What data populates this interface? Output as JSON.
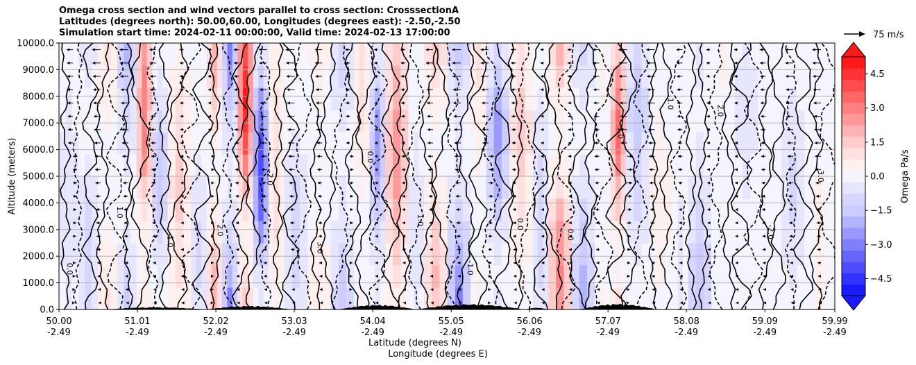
{
  "chart_data": {
    "type": "contour",
    "title_lines": [
      "Omega cross section and wind vectors parallel to cross section: CrosssectionA",
      "Latitudes (degrees north): 50.00,60.00, Longitudes (degrees east): -2.50,-2.50",
      "Simulation start time: 2024-02-11 00:00:00, Valid time: 2024-02-13 17:00:00"
    ],
    "ylabel": "Altitude (meters)",
    "xlabel_lat": "Latitude (degrees N)",
    "xlabel_lon": "Longitude (degrees E)",
    "ylim": [
      0,
      10000
    ],
    "yticks": [
      "0.0",
      "1000.0",
      "2000.0",
      "3000.0",
      "4000.0",
      "5000.0",
      "6000.0",
      "7000.0",
      "8000.0",
      "9000.0",
      "10000.0"
    ],
    "ytick_values": [
      0,
      1000,
      2000,
      3000,
      4000,
      5000,
      6000,
      7000,
      8000,
      9000,
      10000
    ],
    "xlim": [
      50.0,
      59.99
    ],
    "xticks_lat": [
      "50.00",
      "51.01",
      "52.02",
      "53.03",
      "54.04",
      "55.05",
      "56.06",
      "57.07",
      "58.08",
      "59.09",
      "59.99"
    ],
    "xticks_lon": [
      "-2.49",
      "-2.49",
      "-2.49",
      "-2.49",
      "-2.49",
      "-2.49",
      "-2.49",
      "-2.49",
      "-2.49",
      "-2.49",
      "-2.49"
    ],
    "xtick_values": [
      50.0,
      51.01,
      52.02,
      53.03,
      54.04,
      55.05,
      56.06,
      57.07,
      58.08,
      59.09,
      59.99
    ],
    "grid": true,
    "colorbar": {
      "label": "Omega Pa/s",
      "range": [
        -5.25,
        5.25
      ],
      "ticks": [
        "4.5",
        "3.0",
        "1.5",
        "0.0",
        "−1.5",
        "−3.0",
        "−4.5"
      ],
      "tick_values": [
        4.5,
        3.0,
        1.5,
        0.0,
        -1.5,
        -3.0,
        -4.5
      ],
      "levels": [
        -5.25,
        -4.75,
        -4.25,
        -3.75,
        -3.25,
        -2.75,
        -2.25,
        -1.75,
        -1.25,
        -0.75,
        -0.25,
        0.25,
        0.75,
        1.25,
        1.75,
        2.25,
        2.75,
        3.25,
        3.75,
        4.25,
        4.75,
        5.25
      ],
      "extend": "both",
      "colors": [
        "#1a1aff",
        "#3333ff",
        "#4d4dff",
        "#6666ff",
        "#8080ff",
        "#9999ff",
        "#b3b3ff",
        "#ccccff",
        "#d6d6ff",
        "#e6e6ff",
        "#f5f5ff",
        "#fff0f0",
        "#ffe0e0",
        "#ffcccc",
        "#ffb3b3",
        "#ff9999",
        "#ff8080",
        "#ff6666",
        "#ff4d4d",
        "#ff3333",
        "#ff1a1a"
      ]
    },
    "quiver_key": "75 m/s",
    "contour_labels": [
      "0.0",
      "1.0",
      "-1.0",
      "2.0",
      "-2.0",
      "3.0",
      "0.0",
      "1.0",
      "-1.0",
      "0.0"
    ],
    "omega_field_bands": [
      {
        "x": 50.0,
        "v": -0.6
      },
      {
        "x": 50.25,
        "v": -1.2
      },
      {
        "x": 50.5,
        "v": 0.8
      },
      {
        "x": 50.75,
        "v": -2.2
      },
      {
        "x": 51.0,
        "v": 3.2
      },
      {
        "x": 51.2,
        "v": -1.6
      },
      {
        "x": 51.4,
        "v": 1.4
      },
      {
        "x": 51.7,
        "v": -0.8
      },
      {
        "x": 51.9,
        "v": 2.2
      },
      {
        "x": 52.1,
        "v": -3.8
      },
      {
        "x": 52.3,
        "v": 4.8
      },
      {
        "x": 52.5,
        "v": -4.2
      },
      {
        "x": 52.7,
        "v": 1.2
      },
      {
        "x": 52.9,
        "v": -1.0
      },
      {
        "x": 53.2,
        "v": 0.6
      },
      {
        "x": 53.5,
        "v": -1.8
      },
      {
        "x": 53.8,
        "v": 1.0
      },
      {
        "x": 54.0,
        "v": -2.6
      },
      {
        "x": 54.2,
        "v": 2.6
      },
      {
        "x": 54.5,
        "v": -0.6
      },
      {
        "x": 54.7,
        "v": 1.8
      },
      {
        "x": 55.0,
        "v": -3.2
      },
      {
        "x": 55.3,
        "v": 0.8
      },
      {
        "x": 55.5,
        "v": -2.4
      },
      {
        "x": 55.8,
        "v": 1.4
      },
      {
        "x": 56.1,
        "v": -1.2
      },
      {
        "x": 56.3,
        "v": 2.8
      },
      {
        "x": 56.6,
        "v": -2.0
      },
      {
        "x": 56.9,
        "v": 0.4
      },
      {
        "x": 57.1,
        "v": 3.4
      },
      {
        "x": 57.3,
        "v": -1.4
      },
      {
        "x": 57.6,
        "v": 0.6
      },
      {
        "x": 57.9,
        "v": -0.4
      },
      {
        "x": 58.1,
        "v": -1.6
      },
      {
        "x": 58.4,
        "v": 0.3
      },
      {
        "x": 58.7,
        "v": -0.6
      },
      {
        "x": 59.0,
        "v": 0.2
      },
      {
        "x": 59.3,
        "v": -0.8
      },
      {
        "x": 59.6,
        "v": 0.4
      },
      {
        "x": 59.99,
        "v": 0.1
      }
    ]
  }
}
